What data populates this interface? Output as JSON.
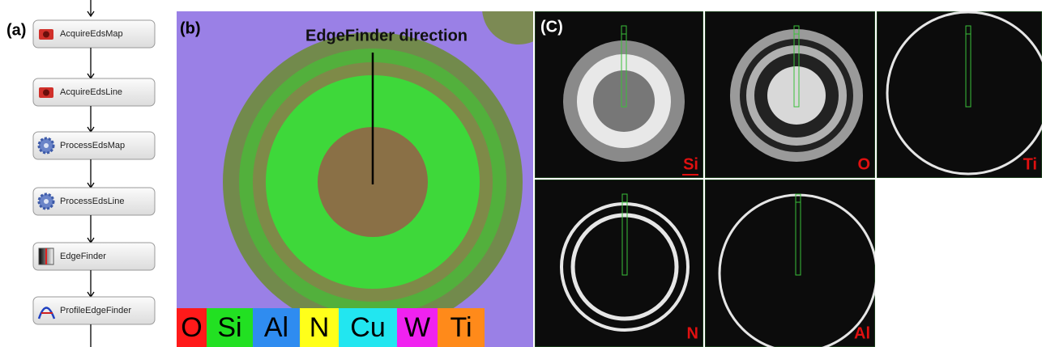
{
  "panel_a": {
    "label": "(a)",
    "nodes": [
      "AcquireEdsMap",
      "AcquireEdsLine",
      "ProcessEdsMap",
      "ProcessEdsLine",
      "EdgeFinder",
      "ProfileEdgeFinder"
    ]
  },
  "panel_b": {
    "label": "(b)",
    "annotation": "EdgeFinder direction",
    "legend": [
      {
        "name": "O",
        "color": "#ff1a1a"
      },
      {
        "name": "Si",
        "color": "#22e022"
      },
      {
        "name": "Al",
        "color": "#2f8cf0"
      },
      {
        "name": "N",
        "color": "#ffff1a"
      },
      {
        "name": "Cu",
        "color": "#22e6f0"
      },
      {
        "name": "W",
        "color": "#f022f0"
      },
      {
        "name": "Ti",
        "color": "#ff8a1a"
      }
    ]
  },
  "panel_c": {
    "label": "(C)",
    "maps": [
      "Si",
      "O",
      "Ti",
      "N",
      "Al"
    ]
  }
}
